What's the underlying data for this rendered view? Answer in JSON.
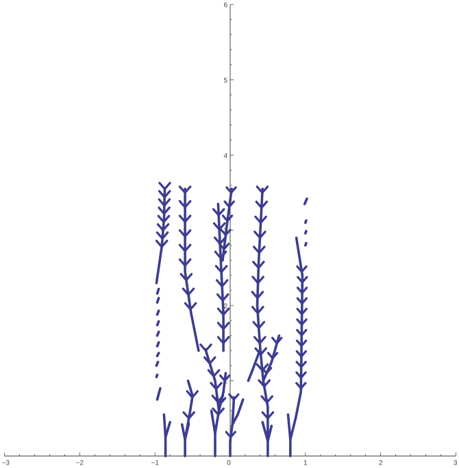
{
  "chart_data": {
    "type": "line",
    "title": "",
    "xlabel": "",
    "ylabel": "",
    "xlim": [
      -3,
      3
    ],
    "ylim": [
      0,
      6
    ],
    "x_ticks": [
      -3,
      -2,
      -1,
      0,
      1,
      2,
      3
    ],
    "x_tick_labels": [
      "−3",
      "−2",
      "−1",
      "0",
      "1",
      "2",
      "3"
    ],
    "y_ticks": [
      1,
      2,
      3,
      4,
      5,
      6
    ],
    "y_tick_labels": [
      "1",
      "2",
      "3",
      "4",
      "5",
      "6"
    ],
    "grid": false,
    "legend": "none",
    "colors": {
      "series": "#3d3d8f",
      "axis": "#444444"
    },
    "series": [
      {
        "values": [
          {
            "trunk": [
              [
                -0.98,
                2.3
              ],
              [
                -0.91,
                2.78
              ],
              [
                -0.88,
                3.15
              ],
              [
                -0.87,
                3.55
              ]
            ],
            "y0": 2.78,
            "y1": 3.55,
            "n": 8,
            "spread": 0.07
          },
          {
            "trunk": [
              [
                -0.97,
                0.75
              ],
              [
                -0.93,
                0.9
              ]
            ],
            "y0": 0,
            "y1": 0,
            "n": 0,
            "spread": 0
          },
          {
            "trunk": [
              [
                -0.98,
                1.05
              ],
              [
                -0.97,
                1.08
              ]
            ],
            "y0": 0,
            "y1": 0,
            "n": 0,
            "spread": 0
          },
          {
            "trunk": [
              [
                -0.98,
                1.2
              ],
              [
                -0.96,
                1.25
              ]
            ],
            "y0": 0,
            "y1": 0,
            "n": 0,
            "spread": 0
          },
          {
            "trunk": [
              [
                -0.97,
                1.33
              ],
              [
                -0.95,
                1.37
              ]
            ],
            "y0": 0,
            "y1": 0,
            "n": 0,
            "spread": 0
          },
          {
            "trunk": [
              [
                -0.97,
                1.46
              ],
              [
                -0.95,
                1.51
              ]
            ],
            "y0": 0,
            "y1": 0,
            "n": 0,
            "spread": 0
          },
          {
            "trunk": [
              [
                -0.97,
                1.6
              ],
              [
                -0.95,
                1.65
              ]
            ],
            "y0": 0,
            "y1": 0,
            "n": 0,
            "spread": 0
          },
          {
            "trunk": [
              [
                -0.97,
                1.74
              ],
              [
                -0.95,
                1.79
              ]
            ],
            "y0": 0,
            "y1": 0,
            "n": 0,
            "spread": 0
          },
          {
            "trunk": [
              [
                -0.97,
                1.88
              ],
              [
                -0.95,
                1.93
              ]
            ],
            "y0": 0,
            "y1": 0,
            "n": 0,
            "spread": 0
          },
          {
            "trunk": [
              [
                -0.97,
                2.04
              ],
              [
                -0.95,
                2.1
              ]
            ],
            "y0": 0,
            "y1": 0,
            "n": 0,
            "spread": 0
          },
          {
            "trunk": [
              [
                -0.97,
                2.16
              ],
              [
                -0.95,
                2.22
              ]
            ],
            "y0": 0,
            "y1": 0,
            "n": 0,
            "spread": 0
          },
          {
            "trunk": [
              [
                -0.86,
                0
              ],
              [
                -0.86,
                0.25
              ],
              [
                -0.88,
                0.55
              ]
            ],
            "y0": 0,
            "y1": 0,
            "n": 0,
            "spread": 0
          },
          {
            "trunk": [
              [
                -0.86,
                0.25
              ],
              [
                -0.8,
                0.45
              ]
            ],
            "y0": 0,
            "y1": 0,
            "n": 0,
            "spread": 0
          },
          {
            "trunk": [
              [
                -0.6,
                0
              ],
              [
                -0.6,
                0.22
              ],
              [
                -0.64,
                0.42
              ]
            ],
            "y0": 0,
            "y1": 0,
            "n": 0,
            "spread": 0
          },
          {
            "trunk": [
              [
                -0.6,
                0.22
              ],
              [
                -0.55,
                0.43
              ]
            ],
            "y0": 0,
            "y1": 0,
            "n": 0,
            "spread": 0
          },
          {
            "trunk": [
              [
                -0.6,
                0.22
              ],
              [
                -0.54,
                0.55
              ],
              [
                -0.5,
                0.8
              ],
              [
                -0.56,
                1.0
              ]
            ],
            "y0": 0.5,
            "y1": 0.78,
            "n": 2,
            "spread": 0.07
          },
          {
            "trunk": [
              [
                -0.42,
                1.4
              ],
              [
                -0.52,
                1.9
              ],
              [
                -0.6,
                2.45
              ],
              [
                -0.6,
                3.55
              ]
            ],
            "y0": 1.95,
            "y1": 3.5,
            "n": 9,
            "spread": 0.07
          },
          {
            "trunk": [
              [
                -0.2,
                0
              ],
              [
                -0.2,
                0.3
              ],
              [
                -0.25,
                0.6
              ]
            ],
            "y0": 0,
            "y1": 0,
            "n": 0,
            "spread": 0
          },
          {
            "trunk": [
              [
                -0.2,
                0.3
              ],
              [
                -0.15,
                0.6
              ],
              [
                -0.2,
                1.0
              ],
              [
                -0.33,
                1.42
              ]
            ],
            "y0": 0.55,
            "y1": 1.4,
            "n": 6,
            "spread": 0.07
          },
          {
            "trunk": [
              [
                -0.15,
                0.6
              ],
              [
                -0.09,
                0.85
              ],
              [
                -0.06,
                1.1
              ]
            ],
            "y0": 0.7,
            "y1": 1.0,
            "n": 2,
            "spread": 0.06
          },
          {
            "trunk": [
              [
                -0.09,
                1.4
              ],
              [
                -0.09,
                1.9
              ],
              [
                -0.12,
                2.5
              ],
              [
                -0.16,
                3.35
              ]
            ],
            "y0": 1.5,
            "y1": 3.2,
            "n": 10,
            "spread": 0.07
          },
          {
            "trunk": [
              [
                -0.1,
                2.6
              ],
              [
                -0.04,
                3.1
              ],
              [
                0.02,
                3.55
              ]
            ],
            "y0": 2.75,
            "y1": 3.5,
            "n": 5,
            "spread": 0.06
          },
          {
            "trunk": [
              [
                0,
                0
              ],
              [
                0,
                0.2
              ],
              [
                0.03,
                0.42
              ],
              [
                0.05,
                0.78
              ]
            ],
            "y0": 0.25,
            "y1": 0.75,
            "n": 2,
            "spread": 0.06
          },
          {
            "trunk": [
              [
                0.03,
                0.42
              ],
              [
                0.1,
                0.55
              ],
              [
                0.17,
                0.75
              ]
            ],
            "y0": 0,
            "y1": 0,
            "n": 0,
            "spread": 0
          },
          {
            "trunk": [
              [
                0.5,
                0
              ],
              [
                0.5,
                0.2
              ],
              [
                0.43,
                0.45
              ]
            ],
            "y0": 0,
            "y1": 0,
            "n": 0,
            "spread": 0
          },
          {
            "trunk": [
              [
                0.5,
                0.2
              ],
              [
                0.55,
                0.4
              ]
            ],
            "y0": 0,
            "y1": 0,
            "n": 0,
            "spread": 0
          },
          {
            "trunk": [
              [
                0.5,
                0.2
              ],
              [
                0.5,
                0.65
              ],
              [
                0.44,
                1.0
              ],
              [
                0.4,
                1.42
              ]
            ],
            "y0": 0.5,
            "y1": 1.35,
            "n": 5,
            "spread": 0.07
          },
          {
            "trunk": [
              [
                0.4,
                1.42
              ],
              [
                0.3,
                1.15
              ],
              [
                0.24,
                1.0
              ]
            ],
            "y0": 0,
            "y1": 0,
            "n": 0,
            "spread": 0
          },
          {
            "trunk": [
              [
                0.44,
                1.0
              ],
              [
                0.55,
                1.25
              ],
              [
                0.65,
                1.6
              ]
            ],
            "y0": 1.1,
            "y1": 1.5,
            "n": 3,
            "spread": 0.06
          },
          {
            "trunk": [
              [
                0.4,
                1.42
              ],
              [
                0.36,
                2.0
              ],
              [
                0.38,
                2.6
              ],
              [
                0.43,
                3.55
              ]
            ],
            "y0": 1.5,
            "y1": 3.5,
            "n": 11,
            "spread": 0.07
          },
          {
            "trunk": [
              [
                0.8,
                0
              ],
              [
                0.8,
                0.22
              ],
              [
                0.77,
                0.55
              ]
            ],
            "y0": 0,
            "y1": 0,
            "n": 0,
            "spread": 0
          },
          {
            "trunk": [
              [
                0.8,
                0.22
              ],
              [
                0.87,
                0.5
              ],
              [
                0.94,
                0.85
              ],
              [
                0.95,
                1.6
              ],
              [
                0.96,
                2.4
              ],
              [
                0.88,
                2.9
              ]
            ],
            "y0": 0.9,
            "y1": 2.45,
            "n": 12,
            "spread": 0.06
          },
          {
            "trunk": [
              [
                1.0,
                2.8
              ],
              [
                1.01,
                2.83
              ]
            ],
            "y0": 0,
            "y1": 0,
            "n": 0,
            "spread": 0
          },
          {
            "trunk": [
              [
                1.0,
                2.96
              ],
              [
                1.01,
                2.99
              ]
            ],
            "y0": 0,
            "y1": 0,
            "n": 0,
            "spread": 0
          },
          {
            "trunk": [
              [
                1.0,
                3.1
              ],
              [
                1.01,
                3.13
              ]
            ],
            "y0": 0,
            "y1": 0,
            "n": 0,
            "spread": 0
          },
          {
            "trunk": [
              [
                0.99,
                3.35
              ],
              [
                1.02,
                3.42
              ]
            ],
            "y0": 0,
            "y1": 0,
            "n": 0,
            "spread": 0
          }
        ]
      }
    ]
  }
}
